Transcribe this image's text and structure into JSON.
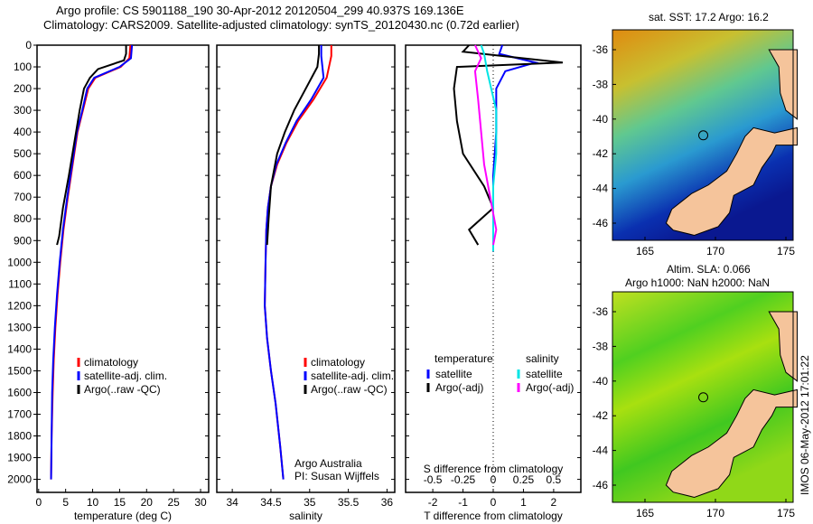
{
  "title_line1": "Argo profile: CS 5901188_190 30-Apr-2012 20120504_299 40.937S 169.136E",
  "title_line2": "Climatology: CARS2009. Satellite-adjusted climatology: synTS_20120430.nc (0.72d earlier)",
  "colors": {
    "climatology": "#ff0000",
    "satellite": "#0000ff",
    "argo": "#000000",
    "sal_satellite": "#00e5e5",
    "sal_argo": "#ff00ff",
    "land": "#f5c49b"
  },
  "chart_data": [
    {
      "type": "line",
      "name": "temperature",
      "xlabel": "temperature (deg C)",
      "xlim": [
        -0.3,
        31.5
      ],
      "ylim": [
        0,
        2060
      ],
      "xticks": [
        0,
        5,
        10,
        15,
        20,
        25,
        30
      ],
      "yticks": [
        0,
        100,
        200,
        300,
        400,
        500,
        600,
        700,
        800,
        900,
        1000,
        1100,
        1200,
        1300,
        1400,
        1500,
        1600,
        1700,
        1800,
        1900,
        2000
      ],
      "legend": [
        "climatology",
        "satellite-adj. clim.",
        "Argo(..raw -QC)"
      ],
      "series": [
        {
          "name": "climatology",
          "x": [
            17,
            16.8,
            15.2,
            10.5,
            9.2,
            8.2,
            7.2,
            6.3,
            5.4,
            4.6,
            4.0,
            3.5,
            3.1,
            2.8,
            2.6,
            2.4,
            2.3
          ],
          "y": [
            0,
            60,
            100,
            150,
            200,
            300,
            400,
            550,
            700,
            850,
            1000,
            1150,
            1300,
            1450,
            1600,
            1800,
            2000
          ]
        },
        {
          "name": "satellite-adj. clim.",
          "x": [
            17.3,
            17.1,
            15.0,
            10.3,
            9.0,
            8.1,
            7.1,
            6.2,
            5.3,
            4.5,
            3.9,
            3.4,
            3.0,
            2.7,
            2.5,
            2.4,
            2.3
          ],
          "y": [
            0,
            60,
            100,
            150,
            200,
            300,
            400,
            550,
            700,
            850,
            1000,
            1150,
            1300,
            1450,
            1600,
            1800,
            2000
          ]
        },
        {
          "name": "Argo(..raw -QC)",
          "x": [
            16.2,
            16.2,
            15.8,
            11,
            9.5,
            8.4,
            7.6,
            6.6,
            5.6,
            4.5,
            3.8,
            3.4
          ],
          "y": [
            0,
            40,
            70,
            110,
            150,
            200,
            300,
            450,
            600,
            750,
            880,
            920
          ]
        }
      ]
    },
    {
      "type": "line",
      "name": "salinity",
      "xlabel": "salinity",
      "xlim": [
        33.8,
        36.1
      ],
      "ylim": [
        0,
        2060
      ],
      "xticks": [
        34,
        34.5,
        35,
        35.5,
        36
      ],
      "legend": [
        "climatology",
        "satellite-adj. clim.",
        "Argo(..raw -QC)"
      ],
      "annotation": [
        "Argo Australia",
        "PI: Susan Wijffels"
      ],
      "series": [
        {
          "name": "climatology",
          "x": [
            35.28,
            35.28,
            35.22,
            35.05,
            34.85,
            34.7,
            34.58,
            34.5,
            34.46,
            34.44,
            34.43,
            34.42,
            34.45,
            34.5,
            34.56,
            34.62,
            34.66
          ],
          "y": [
            0,
            50,
            150,
            250,
            350,
            450,
            550,
            650,
            750,
            850,
            1000,
            1200,
            1350,
            1500,
            1650,
            1850,
            2000
          ]
        },
        {
          "name": "satellite-adj. clim.",
          "x": [
            35.15,
            35.15,
            35.18,
            35.02,
            34.83,
            34.69,
            34.57,
            34.5,
            34.46,
            34.44,
            34.43,
            34.42,
            34.45,
            34.5,
            34.56,
            34.62,
            34.66
          ],
          "y": [
            0,
            50,
            150,
            250,
            350,
            450,
            550,
            650,
            750,
            850,
            1000,
            1200,
            1350,
            1500,
            1650,
            1850,
            2000
          ]
        },
        {
          "name": "Argo(..raw -QC)",
          "x": [
            35.12,
            35.12,
            35.1,
            34.95,
            34.8,
            34.68,
            34.58,
            34.5,
            34.47,
            34.45
          ],
          "y": [
            0,
            40,
            100,
            200,
            300,
            400,
            500,
            650,
            800,
            920
          ]
        }
      ]
    },
    {
      "type": "line",
      "name": "difference",
      "xlabel": "T difference from climatology",
      "x2label": "S difference from climatology",
      "xlim": [
        -2.9,
        2.9
      ],
      "xticks": [
        -2,
        -1,
        0,
        1,
        2
      ],
      "x2ticks": [
        "-0.5",
        "-0.25",
        "0",
        "0.25",
        "0.5"
      ],
      "ylim": [
        0,
        2060
      ],
      "legend": {
        "temperature_title": "temperature",
        "salinity_title": "salinity",
        "items": [
          "satellite",
          "Argo(-adj)",
          "satellite",
          "Argo(-adj)"
        ]
      },
      "series": [
        {
          "name": "T satellite",
          "x": [
            0.3,
            0.2,
            1.4,
            0.4,
            0.1,
            0.1,
            0,
            0,
            0,
            0,
            0
          ],
          "y": [
            0,
            40,
            80,
            120,
            200,
            400,
            600,
            700,
            800,
            900,
            950
          ]
        },
        {
          "name": "T Argo(-adj)",
          "x": [
            -0.8,
            -1.0,
            2.3,
            -1.2,
            -1.3,
            -1.2,
            -1.0,
            -0.3,
            0,
            -0.8,
            -0.5
          ],
          "y": [
            0,
            30,
            80,
            100,
            200,
            350,
            500,
            650,
            750,
            850,
            920
          ]
        },
        {
          "name": "S satellite",
          "x": [
            -0.4,
            -0.3,
            -0.2,
            0.1,
            0.1,
            0,
            0,
            0,
            0
          ],
          "y": [
            0,
            40,
            120,
            300,
            500,
            650,
            800,
            900,
            950
          ]
        },
        {
          "name": "S Argo(-adj)",
          "x": [
            -0.6,
            -0.4,
            -0.6,
            -0.5,
            -0.4,
            -0.3,
            -0.1,
            0.1,
            0
          ],
          "y": [
            0,
            60,
            120,
            250,
            400,
            550,
            700,
            850,
            920
          ]
        }
      ]
    }
  ],
  "map_top": {
    "title": "sat. SST: 17.2 Argo: 16.2",
    "lon_ticks": [
      "165",
      "170",
      "175"
    ],
    "lat_ticks": [
      "-36",
      "-38",
      "-40",
      "-42",
      "-44",
      "-46"
    ]
  },
  "map_bottom": {
    "title_line1": "Altim. SLA: 0.066",
    "title_line2": "Argo h1000: NaN h2000: NaN",
    "lon_ticks": [
      "165",
      "170",
      "175"
    ],
    "lat_ticks": [
      "-36",
      "-38",
      "-40",
      "-42",
      "-44",
      "-46"
    ]
  },
  "side_stamp": "IMOS 06-May-2012 17:01:22"
}
